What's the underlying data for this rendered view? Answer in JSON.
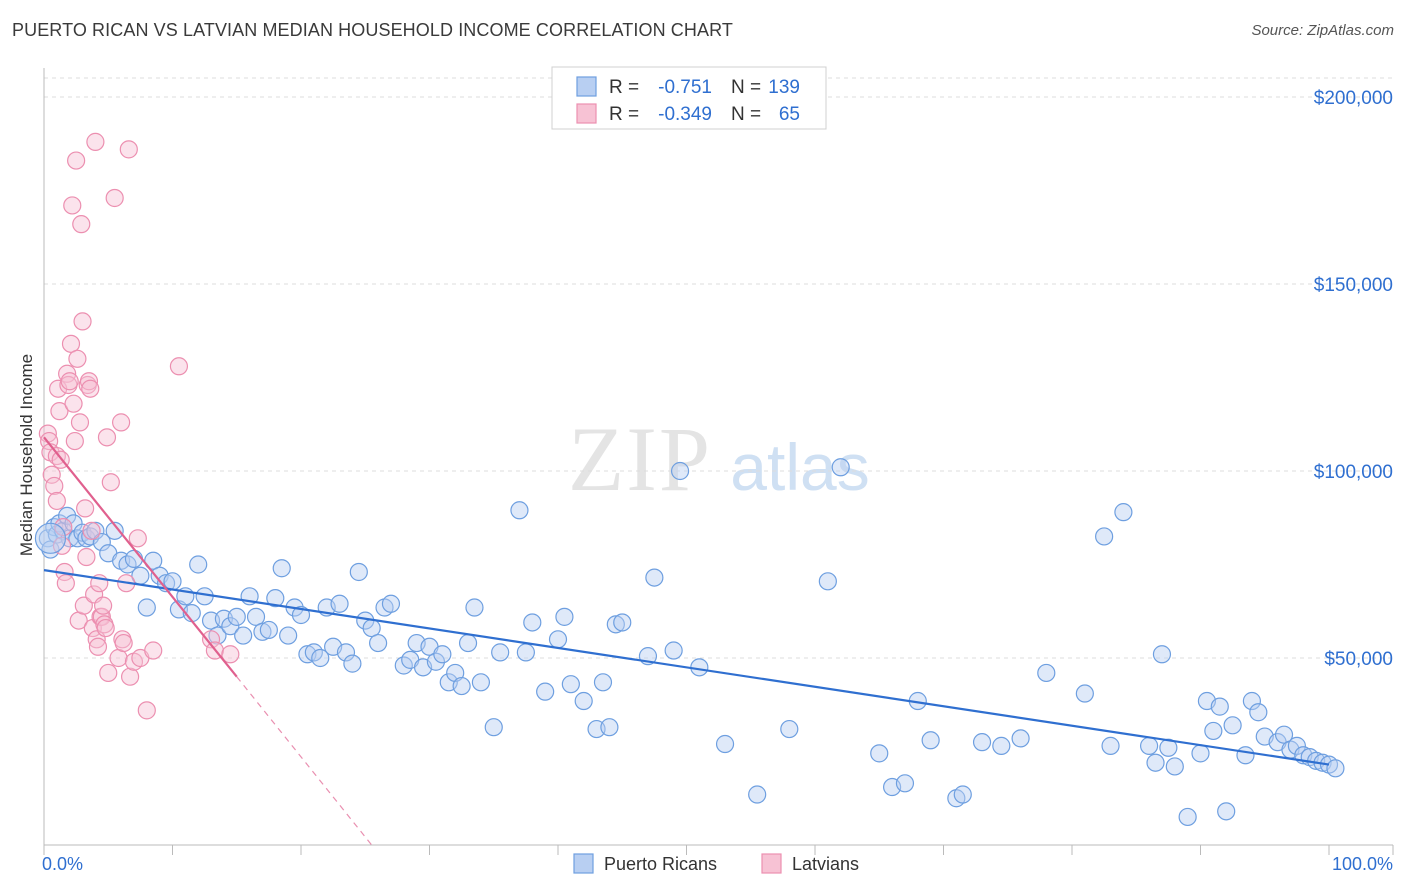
{
  "header": {
    "title": "PUERTO RICAN VS LATVIAN MEDIAN HOUSEHOLD INCOME CORRELATION CHART",
    "source": "Source: ZipAtlas.com"
  },
  "watermark": {
    "zip": "ZIP",
    "atlas": "atlas"
  },
  "colors": {
    "blue": "#6e9fe0",
    "blue_fill": "#b8cff2",
    "blue_line": "#2f6fd0",
    "blue_text": "#2f6fd0",
    "pink": "#ec8fb0",
    "pink_fill": "#f7c2d4",
    "pink_line": "#e0608e",
    "grid": "#dcdcdc",
    "axis": "#bbbbbb"
  },
  "legend": {
    "rows": [
      {
        "r_label": "R =",
        "r_value": "-0.751",
        "n_label": "N =",
        "n_value": "139",
        "color": "blue"
      },
      {
        "r_label": "R =",
        "r_value": "-0.349",
        "n_label": "N =",
        "n_value": "65",
        "color": "pink"
      }
    ]
  },
  "bottom_legend": [
    {
      "label": "Puerto Ricans",
      "color": "blue"
    },
    {
      "label": "Latvians",
      "color": "pink"
    }
  ],
  "chart_data": {
    "type": "scatter",
    "xlabel": "",
    "ylabel": "Median Household Income",
    "xlim": [
      0,
      105
    ],
    "ylim": [
      0,
      210000
    ],
    "x_tick_labels": [
      {
        "value": 0,
        "label": "0.0%"
      },
      {
        "value": 100,
        "label": "100.0%"
      }
    ],
    "y_ticks": [
      {
        "value": 50000,
        "label": "$50,000"
      },
      {
        "value": 100000,
        "label": "$100,000"
      },
      {
        "value": 150000,
        "label": "$150,000"
      },
      {
        "value": 200000,
        "label": "$200,000"
      }
    ],
    "grid": true,
    "series": [
      {
        "name": "Puerto Ricans",
        "color": "blue",
        "trend": {
          "x": [
            0,
            100
          ],
          "y": [
            73500,
            21500
          ]
        },
        "points": [
          [
            0.3,
            82000
          ],
          [
            0.5,
            79000
          ],
          [
            0.8,
            85000
          ],
          [
            1,
            83000
          ],
          [
            1.2,
            86000
          ],
          [
            1.5,
            84000
          ],
          [
            1.8,
            88000
          ],
          [
            2,
            82000
          ],
          [
            2.3,
            86000
          ],
          [
            2.6,
            82000
          ],
          [
            3,
            83500
          ],
          [
            3.3,
            82000
          ],
          [
            3.6,
            82500
          ],
          [
            4,
            84000
          ],
          [
            4.5,
            81000
          ],
          [
            5,
            78000
          ],
          [
            5.5,
            84000
          ],
          [
            6,
            76000
          ],
          [
            6.5,
            75000
          ],
          [
            7,
            76500
          ],
          [
            7.5,
            72000
          ],
          [
            8,
            63500
          ],
          [
            8.5,
            76000
          ],
          [
            9,
            72000
          ],
          [
            9.5,
            70000
          ],
          [
            10,
            70500
          ],
          [
            10.5,
            63000
          ],
          [
            11,
            66500
          ],
          [
            11.5,
            62000
          ],
          [
            12,
            75000
          ],
          [
            12.5,
            66500
          ],
          [
            13,
            60000
          ],
          [
            13.5,
            56000
          ],
          [
            14,
            60500
          ],
          [
            14.5,
            58500
          ],
          [
            15,
            61000
          ],
          [
            15.5,
            56000
          ],
          [
            16,
            66500
          ],
          [
            16.5,
            61000
          ],
          [
            17,
            57000
          ],
          [
            17.5,
            57500
          ],
          [
            18,
            66000
          ],
          [
            18.5,
            74000
          ],
          [
            19,
            56000
          ],
          [
            19.5,
            63500
          ],
          [
            20,
            61500
          ],
          [
            20.5,
            51000
          ],
          [
            21,
            51500
          ],
          [
            21.5,
            50000
          ],
          [
            22,
            63500
          ],
          [
            22.5,
            53000
          ],
          [
            23,
            64500
          ],
          [
            23.5,
            51500
          ],
          [
            24,
            48500
          ],
          [
            24.5,
            73000
          ],
          [
            25,
            60000
          ],
          [
            25.5,
            58000
          ],
          [
            26,
            54000
          ],
          [
            26.5,
            63500
          ],
          [
            27,
            64500
          ],
          [
            28,
            48000
          ],
          [
            28.5,
            49500
          ],
          [
            29,
            54000
          ],
          [
            29.5,
            47500
          ],
          [
            30,
            53000
          ],
          [
            30.5,
            49000
          ],
          [
            31,
            51000
          ],
          [
            31.5,
            43500
          ],
          [
            32,
            46000
          ],
          [
            32.5,
            42500
          ],
          [
            33,
            54000
          ],
          [
            33.5,
            63500
          ],
          [
            34,
            43500
          ],
          [
            35,
            31500
          ],
          [
            35.5,
            51500
          ],
          [
            37,
            89500
          ],
          [
            37.5,
            51500
          ],
          [
            38,
            59500
          ],
          [
            39,
            41000
          ],
          [
            40,
            55000
          ],
          [
            40.5,
            61000
          ],
          [
            41,
            43000
          ],
          [
            42,
            38500
          ],
          [
            43,
            31000
          ],
          [
            43.5,
            43500
          ],
          [
            44,
            31500
          ],
          [
            44.5,
            59000
          ],
          [
            45,
            59500
          ],
          [
            47,
            50500
          ],
          [
            47.5,
            71500
          ],
          [
            49,
            52000
          ],
          [
            49.5,
            100000
          ],
          [
            51,
            47500
          ],
          [
            53,
            27000
          ],
          [
            55.5,
            13500
          ],
          [
            58,
            31000
          ],
          [
            61,
            70500
          ],
          [
            62,
            101000
          ],
          [
            65,
            24500
          ],
          [
            66,
            15500
          ],
          [
            67,
            16500
          ],
          [
            68,
            38500
          ],
          [
            69,
            28000
          ],
          [
            71,
            12500
          ],
          [
            71.5,
            13500
          ],
          [
            73,
            27500
          ],
          [
            74.5,
            26500
          ],
          [
            76,
            28500
          ],
          [
            78,
            46000
          ],
          [
            81,
            40500
          ],
          [
            82.5,
            82500
          ],
          [
            83,
            26500
          ],
          [
            84,
            89000
          ],
          [
            86,
            26500
          ],
          [
            86.5,
            22000
          ],
          [
            87,
            51000
          ],
          [
            87.5,
            26000
          ],
          [
            88,
            21000
          ],
          [
            89,
            7500
          ],
          [
            90,
            24500
          ],
          [
            90.5,
            38500
          ],
          [
            91,
            30500
          ],
          [
            91.5,
            37000
          ],
          [
            92,
            9000
          ],
          [
            92.5,
            32000
          ],
          [
            93.5,
            24000
          ],
          [
            94,
            38500
          ],
          [
            94.5,
            35500
          ],
          [
            95,
            29000
          ],
          [
            96,
            27500
          ],
          [
            96.5,
            29500
          ],
          [
            97,
            25500
          ],
          [
            97.5,
            26500
          ],
          [
            98,
            24000
          ],
          [
            98.5,
            23500
          ],
          [
            99,
            22500
          ],
          [
            99.5,
            22000
          ],
          [
            100,
            21500
          ],
          [
            100.5,
            20500
          ]
        ]
      },
      {
        "name": "Latvians",
        "color": "pink",
        "trend": {
          "x": [
            0,
            15
          ],
          "y": [
            109000,
            45000
          ]
        },
        "trend_extension": {
          "x": [
            15,
            25.5
          ],
          "y": [
            45000,
            0
          ]
        },
        "points": [
          [
            0.3,
            110000
          ],
          [
            0.4,
            108000
          ],
          [
            0.5,
            105000
          ],
          [
            0.6,
            99000
          ],
          [
            0.8,
            96000
          ],
          [
            1,
            104000
          ],
          [
            1.1,
            122000
          ],
          [
            1.2,
            116000
          ],
          [
            1.3,
            103000
          ],
          [
            1.4,
            80000
          ],
          [
            1.5,
            85000
          ],
          [
            1.6,
            73000
          ],
          [
            1.7,
            70000
          ],
          [
            1.8,
            126000
          ],
          [
            1.9,
            123000
          ],
          [
            2,
            124000
          ],
          [
            2.1,
            134000
          ],
          [
            2.2,
            171000
          ],
          [
            2.3,
            118000
          ],
          [
            2.4,
            108000
          ],
          [
            2.5,
            183000
          ],
          [
            2.6,
            130000
          ],
          [
            2.7,
            60000
          ],
          [
            2.8,
            113000
          ],
          [
            2.9,
            166000
          ],
          [
            3,
            140000
          ],
          [
            3.1,
            64000
          ],
          [
            3.2,
            90000
          ],
          [
            3.3,
            77000
          ],
          [
            3.4,
            123000
          ],
          [
            3.5,
            124000
          ],
          [
            3.6,
            122000
          ],
          [
            3.7,
            84000
          ],
          [
            3.8,
            58000
          ],
          [
            3.9,
            67000
          ],
          [
            4,
            188000
          ],
          [
            4.1,
            55000
          ],
          [
            4.2,
            53000
          ],
          [
            4.3,
            70000
          ],
          [
            4.4,
            61000
          ],
          [
            4.5,
            61000
          ],
          [
            4.6,
            64000
          ],
          [
            4.7,
            59000
          ],
          [
            4.8,
            58000
          ],
          [
            4.9,
            109000
          ],
          [
            5,
            46000
          ],
          [
            5.2,
            97000
          ],
          [
            5.5,
            173000
          ],
          [
            5.8,
            50000
          ],
          [
            6,
            113000
          ],
          [
            6.1,
            55000
          ],
          [
            6.2,
            54000
          ],
          [
            6.4,
            70000
          ],
          [
            6.6,
            186000
          ],
          [
            6.7,
            45000
          ],
          [
            7,
            49000
          ],
          [
            7.3,
            82000
          ],
          [
            7.5,
            50000
          ],
          [
            8,
            36000
          ],
          [
            8.5,
            52000
          ],
          [
            10.5,
            128000
          ],
          [
            13,
            55000
          ],
          [
            13.3,
            52000
          ],
          [
            14.5,
            51000
          ],
          [
            1,
            92000
          ]
        ]
      }
    ]
  }
}
